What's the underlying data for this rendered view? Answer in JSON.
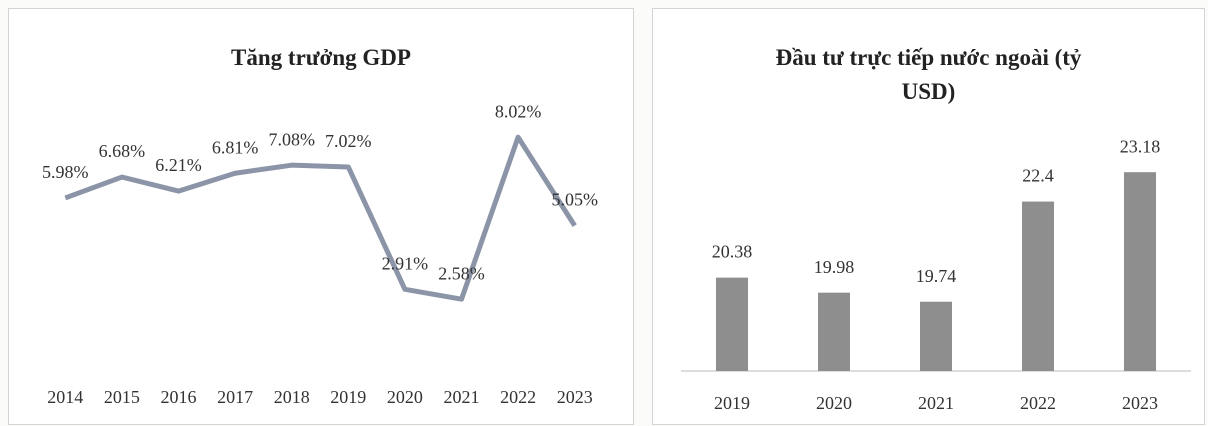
{
  "chart_data": [
    {
      "type": "line",
      "title": "Tăng trưởng GDP",
      "categories": [
        "2014",
        "2015",
        "2016",
        "2017",
        "2018",
        "2019",
        "2020",
        "2021",
        "2022",
        "2023"
      ],
      "series": [
        {
          "name": "Tăng trưởng GDP",
          "color": "#8c95a8",
          "values": [
            5.98,
            6.68,
            6.21,
            6.81,
            7.08,
            7.02,
            2.91,
            2.58,
            8.02,
            5.05
          ],
          "value_labels": [
            "5.98%",
            "6.68%",
            "6.21%",
            "6.81%",
            "7.08%",
            "7.02%",
            "2.91%",
            "2.58%",
            "8.02%",
            "5.05%"
          ]
        }
      ],
      "ylim": [
        0,
        9
      ]
    },
    {
      "type": "bar",
      "title": "Đầu tư trực tiếp nước ngoài (tỷ USD)",
      "categories": [
        "2019",
        "2020",
        "2021",
        "2022",
        "2023"
      ],
      "values": [
        20.38,
        19.98,
        19.74,
        22.4,
        23.18
      ],
      "color": "#8e8e8e",
      "ylim": [
        17.9,
        24.3
      ]
    }
  ]
}
